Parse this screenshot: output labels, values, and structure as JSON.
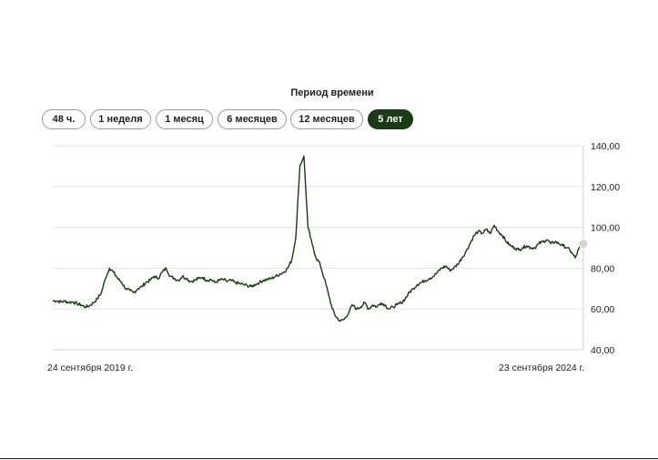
{
  "period": {
    "title": "Период времени",
    "options": [
      {
        "label": "48 ч.",
        "active": false
      },
      {
        "label": "1 неделя",
        "active": false
      },
      {
        "label": "1 месяц",
        "active": false
      },
      {
        "label": "6 месяцев",
        "active": false
      },
      {
        "label": "12 месяцев",
        "active": false
      },
      {
        "label": "5 лет",
        "active": true
      }
    ]
  },
  "colors": {
    "line": "#1b3a16",
    "active_pill": "#1b3a16",
    "grid": "#e2e2e2",
    "endpoint": "#cfd8cc"
  },
  "chart_data": {
    "type": "line",
    "title": "",
    "xlabel": "",
    "ylabel": "",
    "ylim": [
      40,
      140
    ],
    "yticks": [
      "40,00",
      "60,00",
      "80,00",
      "100,00",
      "120,00",
      "140,00"
    ],
    "ytick_values": [
      40,
      60,
      80,
      100,
      120,
      140
    ],
    "y_axis_side": "right",
    "grid": true,
    "x_start_label": "24 сентября 2019 г.",
    "x_end_label": "23 сентября 2024 г.",
    "series": [
      {
        "values": [
          64,
          64,
          63.5,
          63.8,
          63.2,
          63.5,
          62.5,
          62,
          61,
          61.5,
          63,
          65,
          68,
          75,
          80,
          78,
          75,
          73,
          70,
          69,
          68,
          70,
          71,
          73,
          74,
          76,
          75,
          78,
          80,
          76,
          75,
          74,
          76,
          75,
          73.5,
          74,
          75,
          75.5,
          74,
          74.5,
          73,
          74,
          74.5,
          73.5,
          74,
          73,
          72.5,
          72,
          71.5,
          71,
          72,
          73,
          74,
          74.5,
          75,
          76,
          77,
          78,
          80,
          84,
          95,
          130,
          135,
          100,
          92,
          85,
          82,
          75,
          68,
          60,
          56,
          54,
          55,
          58,
          62,
          60,
          61,
          63,
          60,
          62,
          61,
          63,
          62,
          60,
          61,
          62,
          63,
          65,
          68,
          70,
          72,
          73,
          74,
          75,
          76,
          78,
          80,
          81,
          79,
          80,
          82,
          85,
          88,
          92,
          96,
          98,
          97,
          99,
          97,
          101,
          98,
          96,
          93,
          91,
          90,
          89,
          90,
          91,
          90,
          90,
          92,
          93,
          94,
          92,
          93,
          92,
          91,
          90,
          88,
          85,
          90,
          92
        ]
      }
    ]
  }
}
